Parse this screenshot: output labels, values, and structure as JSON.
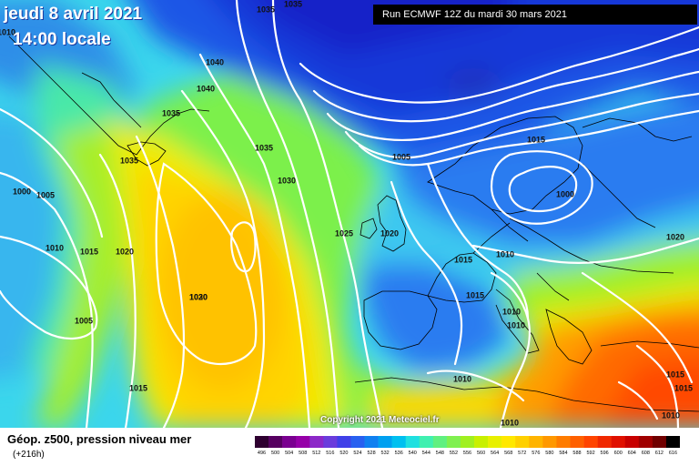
{
  "header": {
    "date": "jeudi 8 avril 2021",
    "time": "14:00 locale",
    "run": "Run ECMWF 12Z du mardi 30 mars 2021"
  },
  "map": {
    "pressure_labels": [
      "1035",
      "1035",
      "1040",
      "1040",
      "1035",
      "1035",
      "1035",
      "1030",
      "1025",
      "1020",
      "1015",
      "1010",
      "1015",
      "1020",
      "1010",
      "1005",
      "1000",
      "1010",
      "1015",
      "1010",
      "1010",
      "1020",
      "1000",
      "1005",
      "1010",
      "1015",
      "1020",
      "1030",
      "1005",
      "1015",
      "1010",
      "1015",
      "1015",
      "1010"
    ],
    "copyright": "Copyright 2021 Meteociel.fr"
  },
  "footer": {
    "field_label": "Géop. z500, pression niveau mer",
    "lead": "(+216h)",
    "scale": {
      "ticks": [
        "496",
        "500",
        "504",
        "508",
        "512",
        "516",
        "520",
        "524",
        "528",
        "532",
        "536",
        "540",
        "544",
        "548",
        "552",
        "556",
        "560",
        "564",
        "568",
        "572",
        "576",
        "580",
        "584",
        "588",
        "592",
        "596",
        "600",
        "604",
        "608",
        "612",
        "616"
      ],
      "colors": [
        "#2e0030",
        "#560060",
        "#7a0090",
        "#9600a8",
        "#8c28c8",
        "#6a3cdc",
        "#4040e8",
        "#2860f0",
        "#1080f0",
        "#00a0f0",
        "#00c0f0",
        "#20e0e0",
        "#40f0b0",
        "#60f080",
        "#80f050",
        "#a0f020",
        "#c8f000",
        "#e8f000",
        "#ffe800",
        "#ffd000",
        "#ffb400",
        "#ff9800",
        "#ff7c00",
        "#ff6000",
        "#ff4400",
        "#f02800",
        "#e01000",
        "#c80000",
        "#a00000",
        "#700000",
        "#000000"
      ]
    }
  }
}
